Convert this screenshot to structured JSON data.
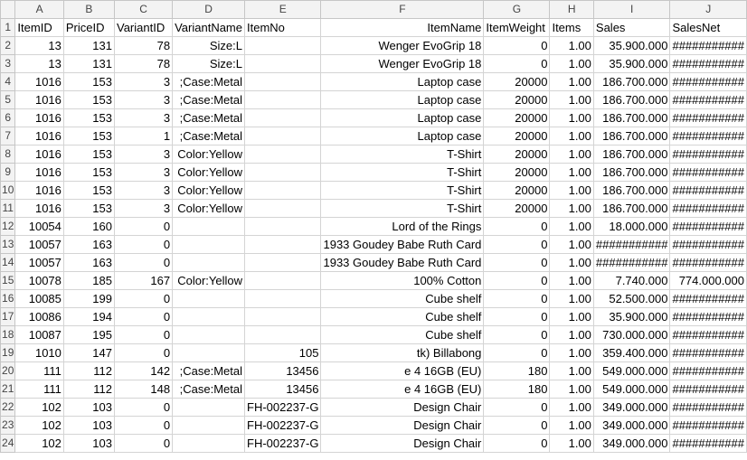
{
  "columns": [
    "A",
    "B",
    "C",
    "D",
    "E",
    "F",
    "G",
    "H",
    "I",
    "J"
  ],
  "header_row": {
    "row_number": "1",
    "cells": [
      "ItemID",
      "PriceID",
      "VariantID",
      "VariantName",
      "ItemNo",
      "ItemName",
      "ItemWeight",
      "Items",
      "Sales",
      "SalesNet"
    ]
  },
  "rows": [
    {
      "n": "2",
      "cells": [
        "13",
        "131",
        "78",
        "Size:L",
        "",
        "Wenger EvoGrip 18",
        "0",
        "1.00",
        "35.900.000",
        "###########"
      ]
    },
    {
      "n": "3",
      "cells": [
        "13",
        "131",
        "78",
        "Size:L",
        "",
        "Wenger EvoGrip 18",
        "0",
        "1.00",
        "35.900.000",
        "###########"
      ]
    },
    {
      "n": "4",
      "cells": [
        "1016",
        "153",
        "3",
        ";Case:Metal",
        "",
        "Laptop case",
        "20000",
        "1.00",
        "186.700.000",
        "###########"
      ]
    },
    {
      "n": "5",
      "cells": [
        "1016",
        "153",
        "3",
        ";Case:Metal",
        "",
        "Laptop case",
        "20000",
        "1.00",
        "186.700.000",
        "###########"
      ]
    },
    {
      "n": "6",
      "cells": [
        "1016",
        "153",
        "3",
        ";Case:Metal",
        "",
        "Laptop case",
        "20000",
        "1.00",
        "186.700.000",
        "###########"
      ]
    },
    {
      "n": "7",
      "cells": [
        "1016",
        "153",
        "1",
        ";Case:Metal",
        "",
        "Laptop case",
        "20000",
        "1.00",
        "186.700.000",
        "###########"
      ]
    },
    {
      "n": "8",
      "cells": [
        "1016",
        "153",
        "3",
        "Color:Yellow",
        "",
        "T-Shirt",
        "20000",
        "1.00",
        "186.700.000",
        "###########"
      ]
    },
    {
      "n": "9",
      "cells": [
        "1016",
        "153",
        "3",
        "Color:Yellow",
        "",
        "T-Shirt",
        "20000",
        "1.00",
        "186.700.000",
        "###########"
      ]
    },
    {
      "n": "10",
      "cells": [
        "1016",
        "153",
        "3",
        "Color:Yellow",
        "",
        "T-Shirt",
        "20000",
        "1.00",
        "186.700.000",
        "###########"
      ]
    },
    {
      "n": "11",
      "cells": [
        "1016",
        "153",
        "3",
        "Color:Yellow",
        "",
        "T-Shirt",
        "20000",
        "1.00",
        "186.700.000",
        "###########"
      ]
    },
    {
      "n": "12",
      "cells": [
        "10054",
        "160",
        "0",
        "",
        "",
        "Lord of the Rings",
        "0",
        "1.00",
        "18.000.000",
        "###########"
      ]
    },
    {
      "n": "13",
      "cells": [
        "10057",
        "163",
        "0",
        "",
        "",
        "1933 Goudey Babe Ruth Card",
        "0",
        "1.00",
        "###########",
        "###########"
      ]
    },
    {
      "n": "14",
      "cells": [
        "10057",
        "163",
        "0",
        "",
        "",
        "1933 Goudey Babe Ruth Card",
        "0",
        "1.00",
        "###########",
        "###########"
      ]
    },
    {
      "n": "15",
      "cells": [
        "10078",
        "185",
        "167",
        "Color:Yellow",
        "",
        "100% Cotton",
        "0",
        "1.00",
        "7.740.000",
        "774.000.000"
      ]
    },
    {
      "n": "16",
      "cells": [
        "10085",
        "199",
        "0",
        "",
        "",
        "Cube shelf",
        "0",
        "1.00",
        "52.500.000",
        "###########"
      ]
    },
    {
      "n": "17",
      "cells": [
        "10086",
        "194",
        "0",
        "",
        "",
        "Cube shelf",
        "0",
        "1.00",
        "35.900.000",
        "###########"
      ]
    },
    {
      "n": "18",
      "cells": [
        "10087",
        "195",
        "0",
        "",
        "",
        "Cube shelf",
        "0",
        "1.00",
        "730.000.000",
        "###########"
      ]
    },
    {
      "n": "19",
      "cells": [
        "1010",
        "147",
        "0",
        "",
        "105",
        "tk) Billabong",
        "0",
        "1.00",
        "359.400.000",
        "###########"
      ]
    },
    {
      "n": "20",
      "cells": [
        "111",
        "112",
        "142",
        ";Case:Metal",
        "13456",
        "e 4 16GB (EU)",
        "180",
        "1.00",
        "549.000.000",
        "###########"
      ]
    },
    {
      "n": "21",
      "cells": [
        "111",
        "112",
        "148",
        ";Case:Metal",
        "13456",
        "e 4 16GB (EU)",
        "180",
        "1.00",
        "549.000.000",
        "###########"
      ]
    },
    {
      "n": "22",
      "cells": [
        "102",
        "103",
        "0",
        "",
        "FH-002237-G",
        "Design Chair",
        "0",
        "1.00",
        "349.000.000",
        "###########"
      ]
    },
    {
      "n": "23",
      "cells": [
        "102",
        "103",
        "0",
        "",
        "FH-002237-G",
        "Design Chair",
        "0",
        "1.00",
        "349.000.000",
        "###########"
      ]
    },
    {
      "n": "24",
      "cells": [
        "102",
        "103",
        "0",
        "",
        "FH-002237-G",
        "Design Chair",
        "0",
        "1.00",
        "349.000.000",
        "###########"
      ]
    }
  ],
  "colors": {
    "header_bg": "#f3f3f3",
    "gridline": "#d4d4d4",
    "header_border": "#c6c6c6"
  }
}
